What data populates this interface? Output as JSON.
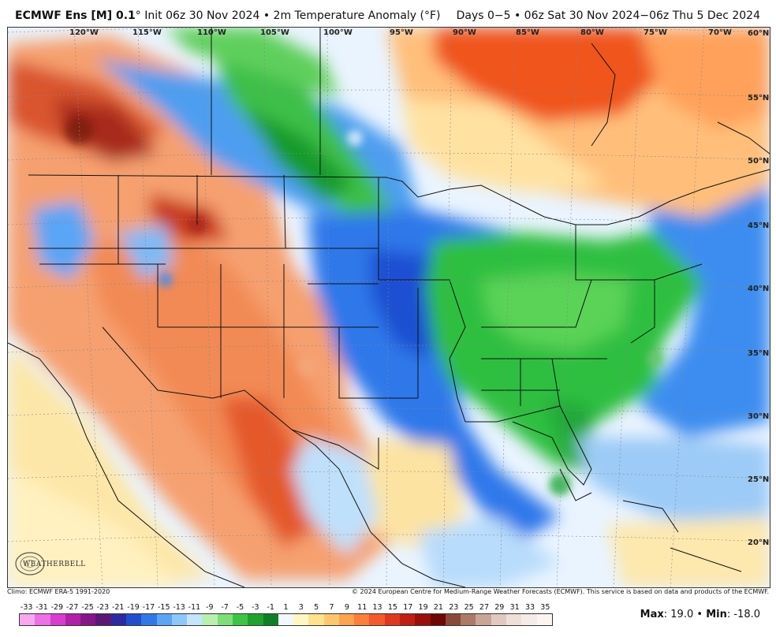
{
  "header": {
    "model": "ECMWF Ens [M] 0.1",
    "degree": "°",
    "init": "Init 06z 30 Nov 2024",
    "sep": "•",
    "field": "2m Temperature Anomaly (°F)",
    "period": "Days 0−5 • 06z Sat 30 Nov 2024−06z Thu 5 Dec 2024"
  },
  "longitudes": [
    "120°W",
    "115°W",
    "110°W",
    "105°W",
    "100°W",
    "95°W",
    "90°W",
    "85°W",
    "80°W",
    "75°W",
    "70°W"
  ],
  "latitudes": [
    "60°N",
    "55°N",
    "50°N",
    "45°N",
    "40°N",
    "35°N",
    "30°N",
    "25°N",
    "20°N"
  ],
  "footer": {
    "climo": "Climo: ECMWF ERA-5 1991-2020",
    "copyright": "© 2024 European Centre for Medium-Range Weather Forecasts (ECMWF). This service is based on data and products of the ECMWF."
  },
  "colorbar": {
    "labels": [
      "-33",
      "-31",
      "-29",
      "-27",
      "-25",
      "-23",
      "-21",
      "-19",
      "-17",
      "-15",
      "-13",
      "-11",
      "-9",
      "-7",
      "-5",
      "-3",
      "-1",
      "1",
      "3",
      "5",
      "7",
      "9",
      "11",
      "13",
      "15",
      "17",
      "19",
      "21",
      "23",
      "25",
      "27",
      "29",
      "31",
      "33",
      "35"
    ],
    "colors": [
      "#f7a8f0",
      "#ee6fe6",
      "#d93ccf",
      "#b21fa8",
      "#86158a",
      "#5a1775",
      "#2b2aa3",
      "#1f4fd1",
      "#2f78ea",
      "#5aa5f5",
      "#8cc8fb",
      "#c5e4ff",
      "#b9f0b2",
      "#7ddf78",
      "#3cc543",
      "#1ea32c",
      "#0f7f24",
      "#f3f7ff",
      "#fff7c2",
      "#ffe38a",
      "#ffc76b",
      "#ffa34f",
      "#ff7f3a",
      "#f55a2a",
      "#e0381d",
      "#c21e12",
      "#9b0e0c",
      "#6f0707",
      "#8a4a3a",
      "#ab7a68",
      "#c9a597",
      "#e2c9c0",
      "#efdfd9",
      "#f5ece8",
      "#fbf5f2"
    ]
  },
  "stats": {
    "max_label": "Max",
    "max_value": "19.0",
    "min_label": "Min",
    "min_value": "-18.0",
    "bullet": "•"
  },
  "logo": {
    "text": "WEATHERBELL"
  }
}
